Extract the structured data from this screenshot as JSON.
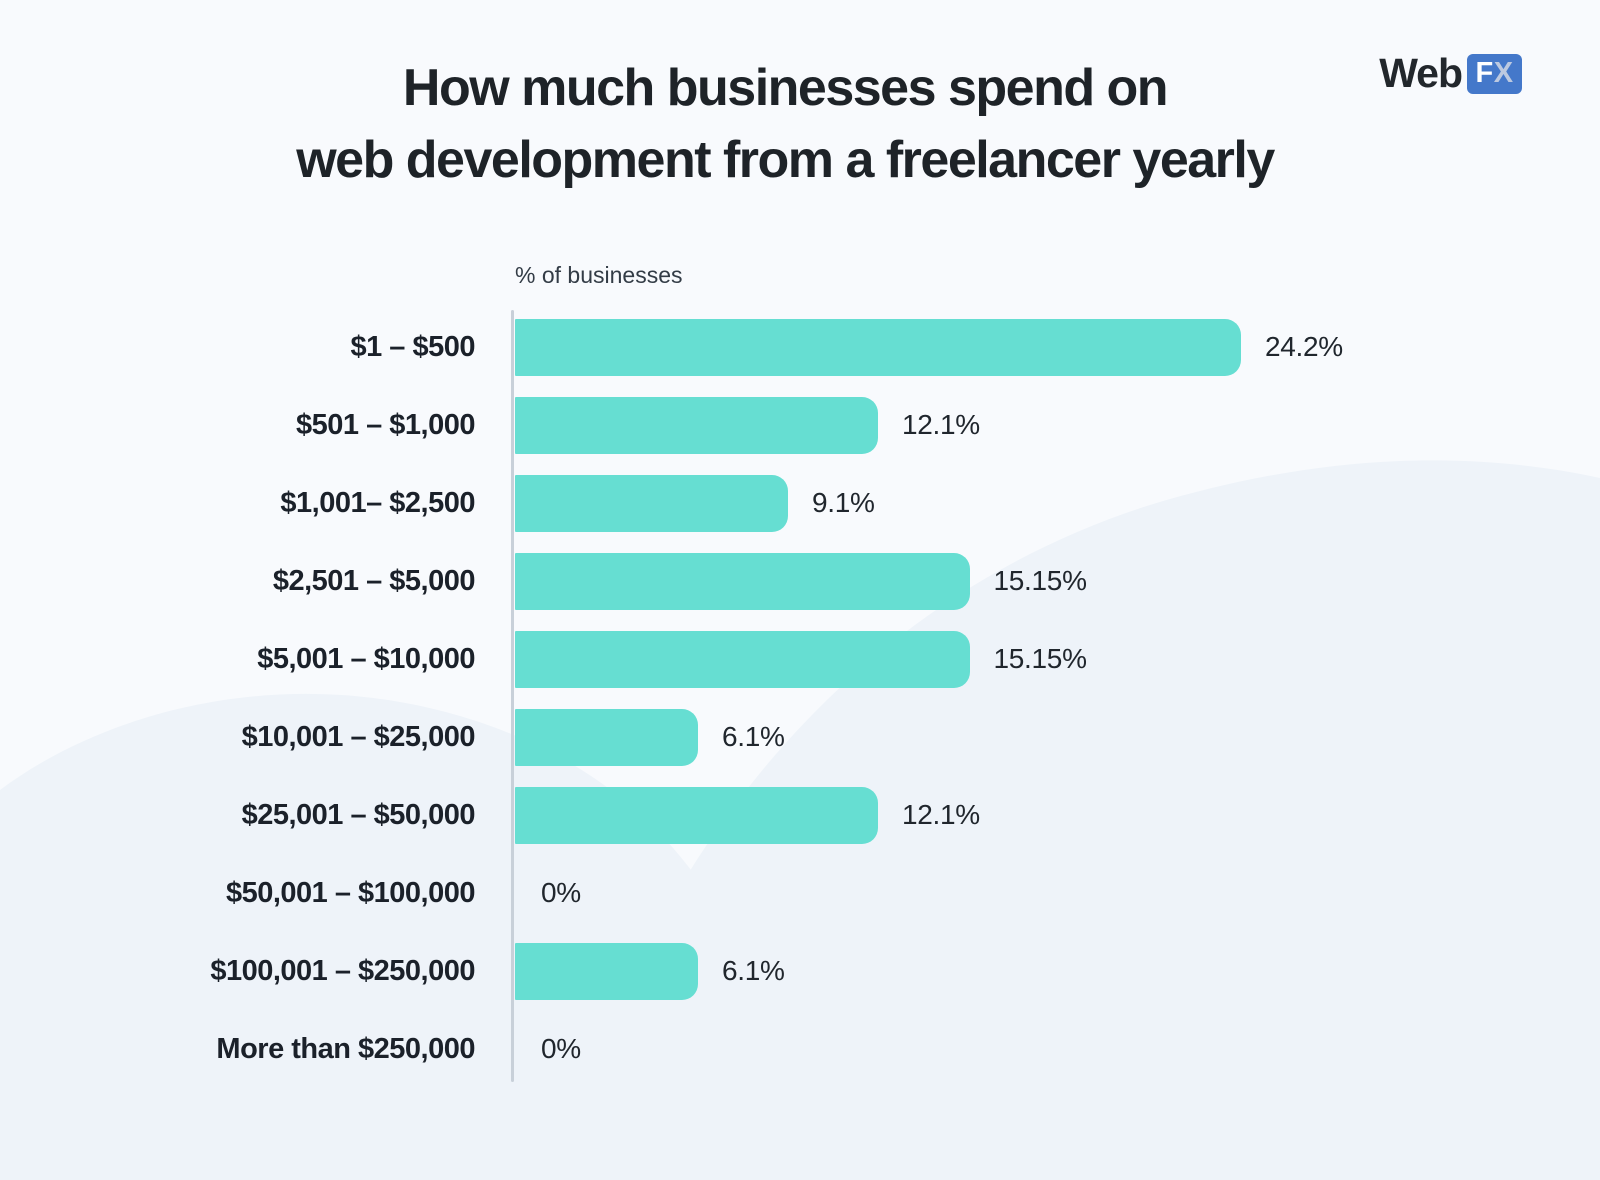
{
  "page": {
    "background": "#f8fafd",
    "wave_color": "#eef3f9"
  },
  "header": {
    "title_line1": "How much businesses spend on",
    "title_line2": "web development from a freelancer yearly"
  },
  "logo": {
    "text": "Web",
    "badge_f": "F",
    "badge_x": "X",
    "badge_color": "#4478ca",
    "badge_x_color": "#bcc9e0"
  },
  "chart_data": {
    "type": "bar",
    "orientation": "horizontal",
    "title": "How much businesses spend on web development from a freelancer yearly",
    "axis_label": "% of businesses",
    "categories": [
      "$1 – $500",
      "$501 – $1,000",
      "$1,001– $2,500",
      "$2,501 – $5,000",
      "$5,001 – $10,000",
      "$10,001 – $25,000",
      "$25,001 – $50,000",
      "$50,001 – $100,000",
      "$100,001 – $250,000",
      "More than $250,000"
    ],
    "values": [
      24.2,
      12.1,
      9.1,
      15.15,
      15.15,
      6.1,
      12.1,
      0,
      6.1,
      0
    ],
    "value_labels": [
      "24.2%",
      "12.1%",
      "9.1%",
      "15.15%",
      "15.15%",
      "6.1%",
      "12.1%",
      "0%",
      "6.1%",
      "0%"
    ],
    "bar_color": "#66ded2",
    "xlim": [
      0,
      25
    ],
    "grid": false,
    "legend": false,
    "value_label_position": "right-of-bar"
  }
}
